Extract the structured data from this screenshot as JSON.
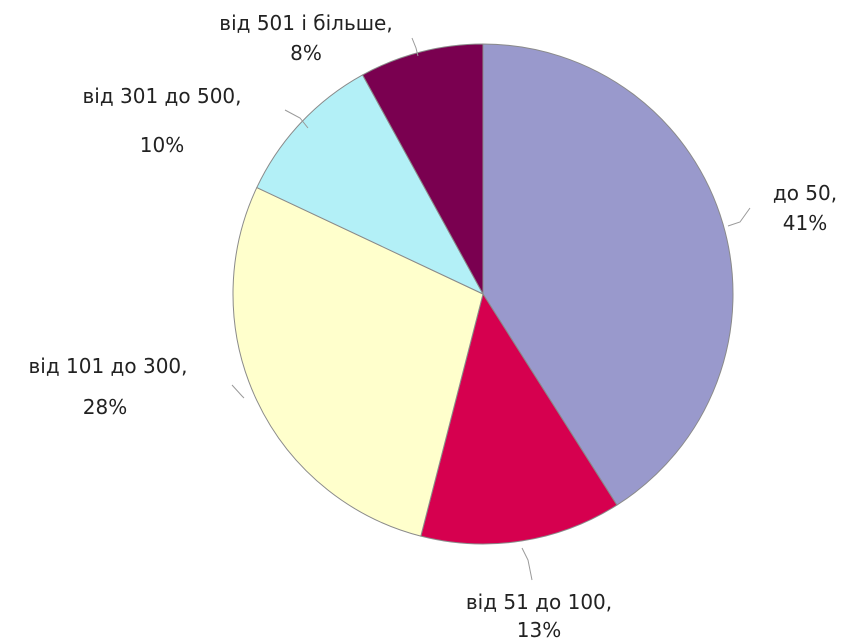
{
  "chart_data": {
    "type": "pie",
    "title": "",
    "start_angle_deg": 0,
    "direction": "clockwise",
    "slices": [
      {
        "label": "до 50,",
        "value": 41,
        "value_text": "41%",
        "color": "#9999cc"
      },
      {
        "label": "від 51 до 100,",
        "value": 13,
        "value_text": "13%",
        "color": "#d6004f"
      },
      {
        "label": "від 101 до 300,",
        "value": 28,
        "value_text": "28%",
        "color": "#ffffcc"
      },
      {
        "label": "від 301 до 500,",
        "value": 10,
        "value_text": "10%",
        "color": "#b3f0f7"
      },
      {
        "label": "від 501 і більше,",
        "value": 8,
        "value_text": "8%",
        "color": "#7a0050"
      }
    ],
    "slice_border_color": "#8a8a8a"
  }
}
